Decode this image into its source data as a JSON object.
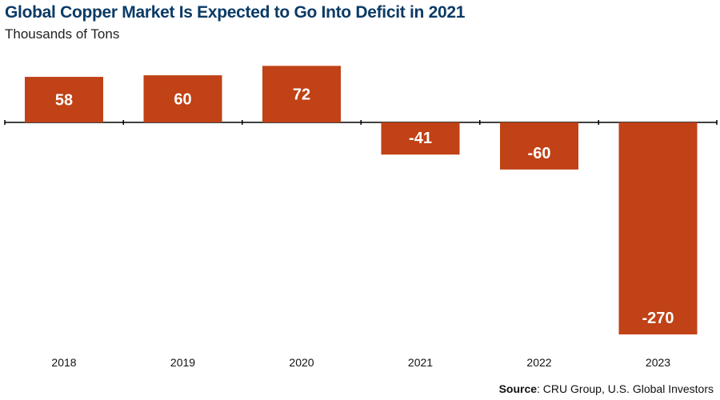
{
  "title": "Global Copper Market Is Expected to Go Into Deficit in 2021",
  "subtitle": "Thousands of Tons",
  "source": {
    "label": "Source",
    "text": ": CRU Group, U.S. Global Investors"
  },
  "colors": {
    "bar": "#c04216",
    "bar_label": "#ffffff",
    "axis": "#000000",
    "title": "#0b3b66"
  },
  "chart_data": {
    "type": "bar",
    "title": "Global Copper Market Is Expected to Go Into Deficit in 2021",
    "subtitle": "Thousands of Tons",
    "categories": [
      "2018",
      "2019",
      "2020",
      "2021",
      "2022",
      "2023"
    ],
    "values": [
      58,
      60,
      72,
      -41,
      -60,
      -270
    ],
    "value_labels": [
      "58",
      "60",
      "72",
      "-41",
      "-60",
      "-270"
    ],
    "xlabel": "",
    "ylabel": "Thousands of Tons",
    "ylim": [
      -280,
      75
    ],
    "grid": false,
    "legend": "none"
  }
}
